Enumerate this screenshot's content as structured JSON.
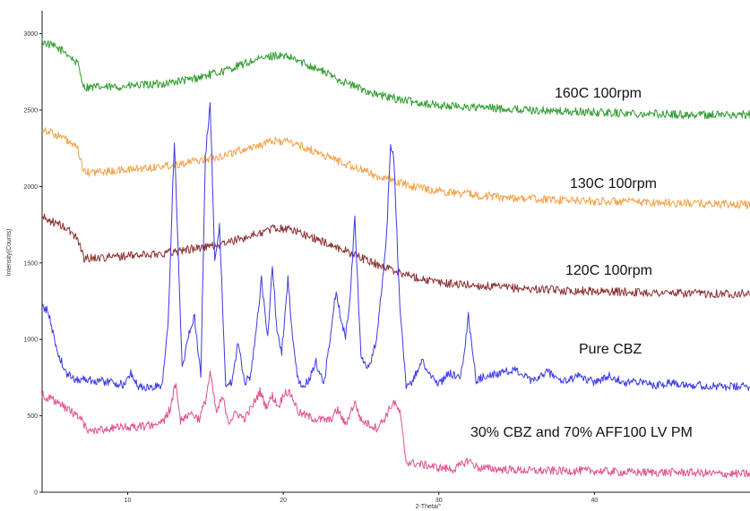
{
  "chart_data": {
    "type": "line",
    "title": "",
    "xlabel": "2-Theta/°",
    "ylabel": "Intensity(Counts)",
    "xlim": [
      4.5,
      50.0
    ],
    "ylim": [
      0,
      3150
    ],
    "x_ticks": [
      10,
      20,
      30,
      40
    ],
    "y_ticks": [
      0,
      500,
      1000,
      1500,
      2000,
      2500,
      3000
    ],
    "grid": false,
    "legend": "inline labels",
    "series": [
      {
        "name": "160C 100rpm",
        "color": "#2e9b2e",
        "baseline": 2680,
        "x": [
          4.5,
          6.0,
          6.8,
          7.2,
          9,
          12,
          14,
          16,
          18,
          19.5,
          20.5,
          22,
          24,
          26,
          28,
          30,
          34,
          38,
          42,
          46,
          50
        ],
        "y": [
          2950,
          2880,
          2800,
          2650,
          2650,
          2670,
          2700,
          2750,
          2820,
          2860,
          2840,
          2780,
          2680,
          2600,
          2560,
          2530,
          2510,
          2490,
          2480,
          2470,
          2470
        ]
      },
      {
        "name": "130C 100rpm",
        "color": "#f4a046",
        "x": [
          4.5,
          6.0,
          6.8,
          7.2,
          9,
          12,
          14,
          16,
          18,
          19.5,
          20.5,
          22,
          24,
          26,
          28,
          30,
          34,
          38,
          42,
          46,
          50
        ],
        "y": [
          2380,
          2310,
          2240,
          2090,
          2100,
          2130,
          2160,
          2200,
          2260,
          2300,
          2290,
          2230,
          2150,
          2070,
          2010,
          1970,
          1930,
          1910,
          1900,
          1890,
          1880
        ]
      },
      {
        "name": "120C 100rpm",
        "color": "#8b2e2e",
        "x": [
          4.5,
          6.0,
          6.8,
          7.2,
          9,
          12,
          14,
          16,
          18,
          19.5,
          20.5,
          22,
          24,
          26,
          28,
          30,
          34,
          38,
          42,
          46,
          50
        ],
        "y": [
          1800,
          1730,
          1660,
          1530,
          1540,
          1560,
          1590,
          1620,
          1680,
          1730,
          1720,
          1660,
          1580,
          1490,
          1420,
          1370,
          1340,
          1320,
          1310,
          1300,
          1300
        ]
      },
      {
        "name": "Pure CBZ",
        "color": "#3a3ae0",
        "x": [
          4.5,
          4.9,
          5.4,
          6.0,
          6.6,
          7.2,
          8.0,
          9.0,
          9.8,
          10.2,
          10.7,
          11.5,
          12.2,
          12.6,
          13.0,
          13.5,
          13.9,
          14.3,
          14.7,
          15.0,
          15.3,
          15.6,
          15.9,
          16.3,
          16.7,
          17.1,
          17.5,
          17.9,
          18.3,
          18.6,
          19.0,
          19.3,
          19.6,
          19.9,
          20.3,
          20.6,
          21.0,
          21.6,
          22.1,
          22.6,
          23.0,
          23.4,
          23.7,
          24.0,
          24.3,
          24.6,
          25.0,
          25.5,
          26.0,
          26.6,
          26.9,
          27.1,
          27.5,
          27.9,
          28.3,
          28.9,
          29.5,
          30.0,
          30.7,
          31.4,
          31.9,
          32.4,
          33.0,
          34.0,
          35.0,
          36.0,
          37.0,
          38.0,
          39.0,
          40.0,
          41.0,
          42.0,
          43.0,
          44.0,
          45.0,
          46.5,
          48.0,
          50.0
        ],
        "y": [
          1220,
          1180,
          950,
          780,
          740,
          740,
          730,
          720,
          700,
          780,
          690,
          680,
          700,
          1100,
          2300,
          800,
          1020,
          1150,
          760,
          2200,
          2560,
          1500,
          1760,
          700,
          720,
          980,
          720,
          760,
          1100,
          1390,
          1000,
          1490,
          1050,
          920,
          1390,
          1000,
          700,
          720,
          850,
          700,
          1000,
          1320,
          1130,
          1020,
          1280,
          1800,
          870,
          800,
          1000,
          1600,
          2270,
          2200,
          1200,
          700,
          720,
          860,
          760,
          710,
          780,
          740,
          1150,
          730,
          760,
          780,
          800,
          720,
          790,
          720,
          760,
          720,
          760,
          720,
          720,
          700,
          720,
          700,
          690,
          690
        ]
      },
      {
        "name": "30% CBZ and 70% AFF100 LV PM",
        "color": "#e0508c",
        "x": [
          4.5,
          5.2,
          6.2,
          7.0,
          7.4,
          9.0,
          11.0,
          12.3,
          12.8,
          13.1,
          13.4,
          14.0,
          14.6,
          15.0,
          15.3,
          15.7,
          16.1,
          16.5,
          17.0,
          17.5,
          18.0,
          18.5,
          18.9,
          19.3,
          19.7,
          20.1,
          20.5,
          21.0,
          22.0,
          23.0,
          23.5,
          24.0,
          24.6,
          25.0,
          26.0,
          26.5,
          26.9,
          27.1,
          27.5,
          27.9,
          28.3,
          29.0,
          30.0,
          31.0,
          31.9,
          32.5,
          34.0,
          36.0,
          38.0,
          40.0,
          42.0,
          44.0,
          46.0,
          48.0,
          50.0
        ],
        "y": [
          640,
          600,
          540,
          480,
          400,
          420,
          430,
          460,
          560,
          730,
          470,
          520,
          480,
          600,
          780,
          520,
          620,
          460,
          520,
          480,
          560,
          660,
          560,
          630,
          560,
          660,
          640,
          520,
          480,
          470,
          540,
          440,
          590,
          470,
          420,
          480,
          560,
          590,
          520,
          200,
          190,
          180,
          160,
          150,
          210,
          160,
          150,
          140,
          140,
          140,
          130,
          130,
          130,
          120,
          120
        ]
      }
    ]
  },
  "labels": {
    "s1": "160C 100rpm",
    "s2": "130C 100rpm",
    "s3": "120C 100rpm",
    "s4": "Pure CBZ",
    "s5": "30% CBZ and 70% AFF100 LV PM"
  },
  "axes": {
    "xlabel": "2-Theta/°",
    "ylabel": "Intensity(Counts)"
  }
}
